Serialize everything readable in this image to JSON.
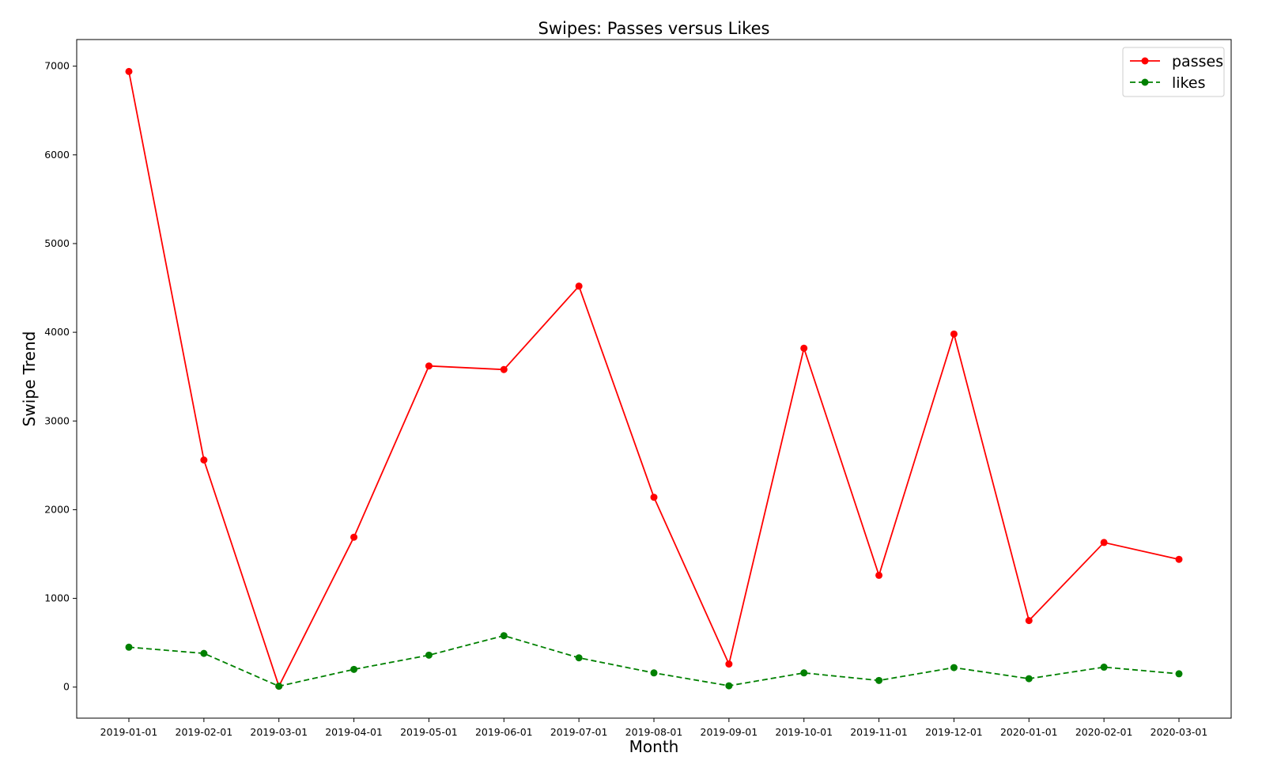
{
  "chart_data": {
    "type": "line",
    "title": "Swipes: Passes versus Likes",
    "xlabel": "Month",
    "ylabel": "Swipe Trend",
    "categories": [
      "2019-01-01",
      "2019-02-01",
      "2019-03-01",
      "2019-04-01",
      "2019-05-01",
      "2019-06-01",
      "2019-07-01",
      "2019-08-01",
      "2019-09-01",
      "2019-10-01",
      "2019-11-01",
      "2019-12-01",
      "2020-01-01",
      "2020-02-01",
      "2020-03-01"
    ],
    "ylim": [
      -350,
      7300
    ],
    "yticks": [
      0,
      1000,
      2000,
      3000,
      4000,
      5000,
      6000,
      7000
    ],
    "grid": false,
    "legend_position": "top-right",
    "series": [
      {
        "name": "passes",
        "color": "#ff0000",
        "line_style": "solid",
        "marker": "circle",
        "values": [
          6940,
          2560,
          10,
          1690,
          3620,
          3580,
          4520,
          2140,
          260,
          3820,
          1260,
          3980,
          750,
          1630,
          1440
        ]
      },
      {
        "name": "likes",
        "color": "#008000",
        "line_style": "dashed",
        "marker": "circle",
        "values": [
          450,
          380,
          10,
          200,
          360,
          580,
          330,
          160,
          15,
          160,
          75,
          220,
          95,
          225,
          150
        ]
      }
    ]
  }
}
